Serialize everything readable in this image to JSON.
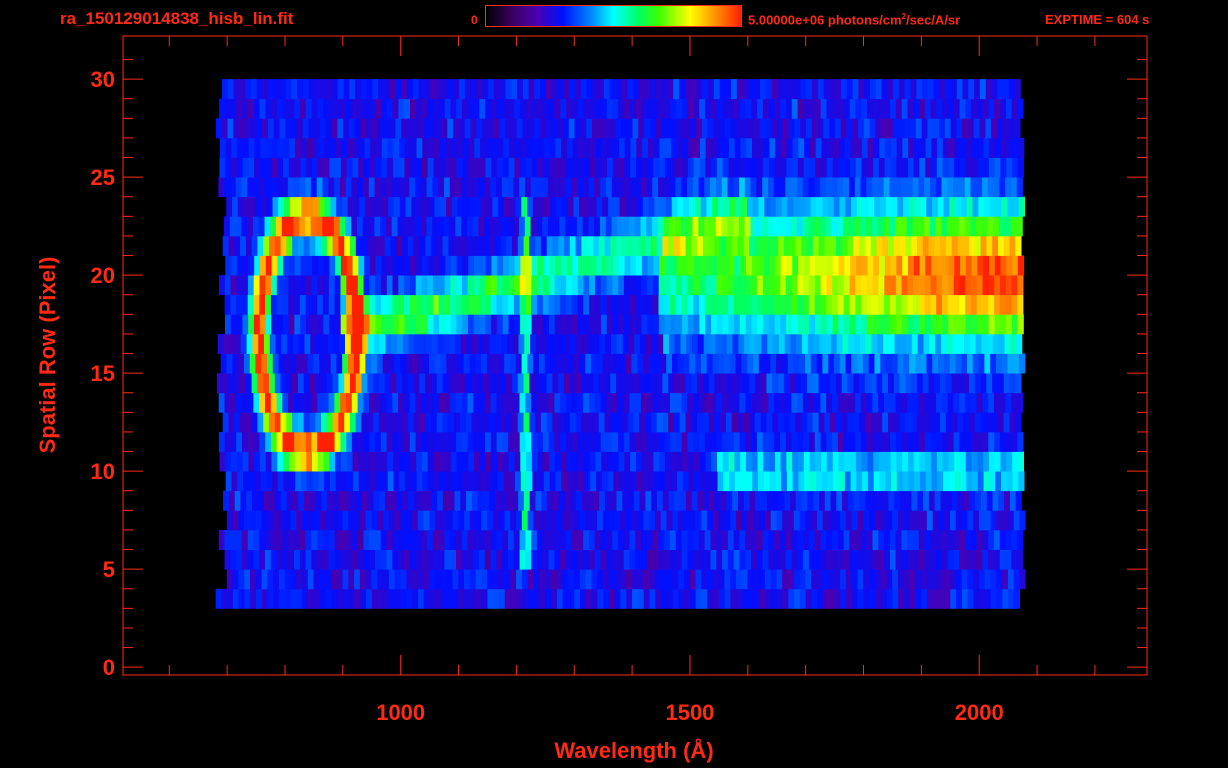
{
  "header": {
    "filename": "ra_150129014838_hisb_lin.fit",
    "colorbar_min": "0",
    "colorbar_max_prefix": "5.00000e+06 photons/cm",
    "colorbar_max_sup": "2",
    "colorbar_max_suffix": "/sec/A/sr",
    "exptime": "EXPTIME = 604 s"
  },
  "chart_data": {
    "type": "heatmap",
    "title": "",
    "xlabel": "Wavelength (Å)",
    "ylabel": "Spatial Row (Pixel)",
    "xlim": [
      520,
      2290
    ],
    "ylim": [
      -0.4,
      32.2
    ],
    "xticks": [
      1000,
      1500,
      2000
    ],
    "xtick_labels": [
      "1000",
      "1500",
      "2000"
    ],
    "yticks": [
      0,
      5,
      10,
      15,
      20,
      25,
      30
    ],
    "ytick_labels": [
      "0",
      "5",
      "10",
      "15",
      "20",
      "25",
      "30"
    ],
    "colormap": "rainbow",
    "color_range": [
      0,
      5000000
    ],
    "color_unit": "photons/cm^2/sec/A/sr",
    "data_extent_x": [
      690,
      2070
    ],
    "data_extent_y": [
      3,
      30
    ],
    "features": [
      {
        "name": "bright ring",
        "center_x": 840,
        "center_y": 17,
        "radius_x": 85,
        "radius_y": 6
      },
      {
        "name": "Lyman-alpha line",
        "x": 1216
      },
      {
        "name": "bright band",
        "x": [
          1600,
          2070
        ],
        "y": [
          16,
          24
        ]
      },
      {
        "name": "secondary band",
        "x": [
          1600,
          2060
        ],
        "y": [
          9,
          11
        ]
      }
    ],
    "colors": {
      "axis": "#ff2a14",
      "background": "#000000"
    }
  }
}
